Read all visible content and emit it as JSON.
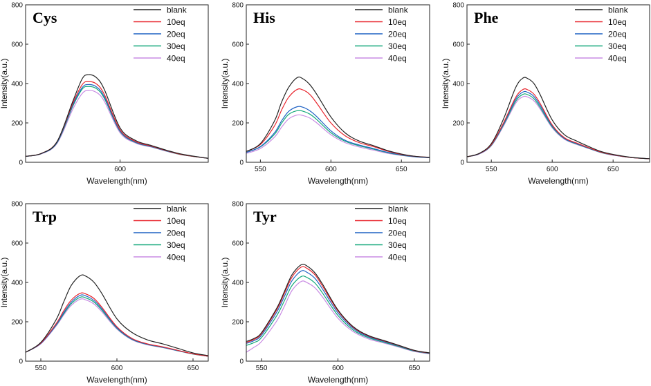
{
  "figure": {
    "xlabel": "Wavelength(nm)",
    "ylabel": "Intensity(a.u.)"
  },
  "series_colors": {
    "blank": "#222222",
    "10eq": "#e8242c",
    "20eq": "#1f62c4",
    "30eq": "#13a87a",
    "40eq": "#c98be3"
  },
  "chart_data": [
    {
      "type": "line",
      "title": "Cys",
      "xlabel": "Wavelength(nm)",
      "ylabel": "Intensity(a.u.)",
      "xlim": [
        540,
        656
      ],
      "ylim": [
        0,
        800
      ],
      "xticks": [
        600
      ],
      "yticks": [
        0,
        200,
        400,
        600,
        800
      ],
      "legend_position": "top-right",
      "series": [
        {
          "name": "blank",
          "x": [
            540,
            550,
            560,
            570,
            576,
            580,
            585,
            590,
            600,
            610,
            620,
            630,
            640,
            656
          ],
          "values": [
            30,
            45,
            105,
            310,
            425,
            445,
            430,
            370,
            175,
            110,
            85,
            60,
            40,
            20
          ]
        },
        {
          "name": "10eq",
          "x": [
            540,
            550,
            560,
            570,
            576,
            580,
            585,
            590,
            600,
            610,
            620,
            630,
            640,
            656
          ],
          "values": [
            30,
            45,
            105,
            300,
            395,
            410,
            398,
            345,
            165,
            105,
            82,
            58,
            38,
            20
          ]
        },
        {
          "name": "20eq",
          "x": [
            540,
            550,
            560,
            570,
            576,
            580,
            585,
            590,
            600,
            610,
            620,
            630,
            640,
            656
          ],
          "values": [
            30,
            44,
            102,
            292,
            380,
            395,
            383,
            333,
            160,
            102,
            80,
            57,
            38,
            20
          ]
        },
        {
          "name": "30eq",
          "x": [
            540,
            550,
            560,
            570,
            576,
            580,
            585,
            590,
            600,
            610,
            620,
            630,
            640,
            656
          ],
          "values": [
            30,
            44,
            100,
            285,
            372,
            385,
            374,
            325,
            157,
            100,
            79,
            56,
            37,
            20
          ]
        },
        {
          "name": "40eq",
          "x": [
            540,
            550,
            560,
            570,
            576,
            580,
            585,
            590,
            600,
            610,
            620,
            630,
            640,
            656
          ],
          "values": [
            30,
            43,
            96,
            270,
            350,
            365,
            355,
            310,
            150,
            97,
            77,
            55,
            37,
            20
          ]
        }
      ]
    },
    {
      "type": "line",
      "title": "His",
      "xlabel": "Wavelength(nm)",
      "ylabel": "Intensity(a.u.)",
      "xlim": [
        540,
        670
      ],
      "ylim": [
        0,
        800
      ],
      "xticks": [
        550,
        600,
        650
      ],
      "yticks": [
        0,
        200,
        400,
        600,
        800
      ],
      "legend_position": "top-right",
      "series": [
        {
          "name": "blank",
          "x": [
            540,
            550,
            560,
            565,
            570,
            576,
            580,
            585,
            590,
            600,
            610,
            620,
            630,
            640,
            650,
            660,
            670
          ],
          "values": [
            55,
            95,
            210,
            305,
            380,
            430,
            425,
            395,
            345,
            230,
            150,
            108,
            85,
            60,
            42,
            30,
            25
          ]
        },
        {
          "name": "10eq",
          "x": [
            540,
            550,
            560,
            565,
            570,
            576,
            580,
            585,
            590,
            600,
            610,
            620,
            630,
            640,
            650,
            660,
            670
          ],
          "values": [
            55,
            90,
            185,
            265,
            330,
            370,
            368,
            345,
            300,
            200,
            135,
            100,
            80,
            57,
            40,
            30,
            25
          ]
        },
        {
          "name": "20eq",
          "x": [
            540,
            550,
            560,
            565,
            570,
            576,
            580,
            585,
            590,
            600,
            610,
            620,
            630,
            640,
            650,
            660,
            670
          ],
          "values": [
            50,
            80,
            150,
            210,
            258,
            282,
            280,
            262,
            232,
            160,
            112,
            88,
            70,
            51,
            37,
            28,
            24
          ]
        },
        {
          "name": "30eq",
          "x": [
            540,
            550,
            560,
            565,
            570,
            576,
            580,
            585,
            590,
            600,
            610,
            620,
            630,
            640,
            650,
            660,
            670
          ],
          "values": [
            50,
            78,
            142,
            198,
            243,
            262,
            260,
            245,
            217,
            150,
            107,
            84,
            67,
            49,
            36,
            28,
            24
          ]
        },
        {
          "name": "40eq",
          "x": [
            540,
            550,
            560,
            565,
            570,
            576,
            580,
            585,
            590,
            600,
            610,
            620,
            630,
            640,
            650,
            660,
            670
          ],
          "values": [
            45,
            70,
            128,
            178,
            220,
            240,
            238,
            225,
            200,
            140,
            100,
            78,
            62,
            46,
            35,
            27,
            23
          ]
        }
      ]
    },
    {
      "type": "line",
      "title": "Phe",
      "xlabel": "Wavelength(nm)",
      "ylabel": "Intensity(a.u.)",
      "xlim": [
        530,
        680
      ],
      "ylim": [
        0,
        800
      ],
      "xticks": [
        550,
        600,
        650
      ],
      "yticks": [
        0,
        200,
        400,
        600,
        800
      ],
      "legend_position": "top-right",
      "series": [
        {
          "name": "blank",
          "x": [
            530,
            540,
            550,
            560,
            570,
            576,
            580,
            585,
            590,
            600,
            610,
            620,
            630,
            640,
            650,
            665,
            680
          ],
          "values": [
            28,
            45,
            95,
            220,
            380,
            428,
            425,
            400,
            345,
            215,
            140,
            108,
            80,
            55,
            40,
            25,
            18
          ]
        },
        {
          "name": "10eq",
          "x": [
            530,
            540,
            550,
            560,
            570,
            576,
            580,
            585,
            590,
            600,
            610,
            620,
            630,
            640,
            650,
            665,
            680
          ],
          "values": [
            28,
            44,
            90,
            200,
            330,
            370,
            368,
            346,
            300,
            190,
            125,
            98,
            74,
            52,
            38,
            24,
            18
          ]
        },
        {
          "name": "20eq",
          "x": [
            530,
            540,
            550,
            560,
            570,
            576,
            580,
            585,
            590,
            600,
            610,
            620,
            630,
            640,
            650,
            665,
            680
          ],
          "values": [
            28,
            43,
            88,
            195,
            320,
            357,
            355,
            334,
            290,
            185,
            122,
            95,
            72,
            51,
            37,
            24,
            18
          ]
        },
        {
          "name": "30eq",
          "x": [
            530,
            540,
            550,
            560,
            570,
            576,
            580,
            585,
            590,
            600,
            610,
            620,
            630,
            640,
            650,
            665,
            680
          ],
          "values": [
            28,
            43,
            86,
            190,
            310,
            345,
            343,
            323,
            280,
            180,
            120,
            93,
            71,
            50,
            37,
            24,
            18
          ]
        },
        {
          "name": "40eq",
          "x": [
            530,
            540,
            550,
            560,
            570,
            576,
            580,
            585,
            590,
            600,
            610,
            620,
            630,
            640,
            650,
            665,
            680
          ],
          "values": [
            28,
            42,
            84,
            184,
            300,
            333,
            331,
            312,
            272,
            175,
            117,
            91,
            70,
            49,
            36,
            24,
            18
          ]
        }
      ]
    },
    {
      "type": "line",
      "title": "Trp",
      "xlabel": "Wavelength(nm)",
      "ylabel": "Intensity(a.u.)",
      "xlim": [
        540,
        660
      ],
      "ylim": [
        0,
        800
      ],
      "xticks": [
        550,
        600,
        650
      ],
      "yticks": [
        0,
        200,
        400,
        600,
        800
      ],
      "legend_position": "top-right",
      "series": [
        {
          "name": "blank",
          "x": [
            540,
            550,
            560,
            565,
            570,
            576,
            580,
            585,
            590,
            600,
            610,
            620,
            630,
            640,
            650,
            660
          ],
          "values": [
            45,
            95,
            210,
            300,
            385,
            435,
            430,
            400,
            345,
            215,
            145,
            108,
            88,
            65,
            42,
            28
          ]
        },
        {
          "name": "10eq",
          "x": [
            540,
            550,
            560,
            565,
            570,
            576,
            580,
            585,
            590,
            600,
            610,
            620,
            630,
            640,
            650,
            660
          ],
          "values": [
            45,
            92,
            190,
            255,
            310,
            345,
            340,
            318,
            275,
            175,
            115,
            88,
            73,
            55,
            37,
            25
          ]
        },
        {
          "name": "20eq",
          "x": [
            540,
            550,
            560,
            565,
            570,
            576,
            580,
            585,
            590,
            600,
            610,
            620,
            630,
            640,
            650,
            660
          ],
          "values": [
            45,
            90,
            185,
            246,
            300,
            335,
            330,
            308,
            267,
            170,
            112,
            86,
            71,
            54,
            37,
            25
          ]
        },
        {
          "name": "30eq",
          "x": [
            540,
            550,
            560,
            565,
            570,
            576,
            580,
            585,
            590,
            600,
            610,
            620,
            630,
            640,
            650,
            660
          ],
          "values": [
            45,
            90,
            182,
            240,
            292,
            325,
            320,
            300,
            260,
            167,
            110,
            85,
            70,
            53,
            36,
            25
          ]
        },
        {
          "name": "40eq",
          "x": [
            540,
            550,
            560,
            565,
            570,
            576,
            580,
            585,
            590,
            600,
            610,
            620,
            630,
            640,
            650,
            660
          ],
          "values": [
            45,
            88,
            178,
            234,
            283,
            315,
            310,
            290,
            252,
            163,
            108,
            83,
            69,
            52,
            36,
            25
          ]
        }
      ]
    },
    {
      "type": "line",
      "title": "Tyr",
      "xlabel": "Wavelength(nm)",
      "ylabel": "Intensity(a.u.)",
      "xlim": [
        540,
        660
      ],
      "ylim": [
        0,
        800
      ],
      "xticks": [
        550,
        600,
        650
      ],
      "yticks": [
        0,
        200,
        400,
        600,
        800
      ],
      "legend_position": "top-right",
      "series": [
        {
          "name": "blank",
          "x": [
            540,
            545,
            550,
            560,
            565,
            570,
            576,
            580,
            585,
            590,
            600,
            610,
            620,
            630,
            640,
            650,
            660
          ],
          "values": [
            100,
            115,
            145,
            270,
            355,
            440,
            490,
            482,
            448,
            390,
            260,
            175,
            130,
            105,
            80,
            55,
            42
          ]
        },
        {
          "name": "10eq",
          "x": [
            540,
            545,
            550,
            560,
            565,
            570,
            576,
            580,
            585,
            590,
            600,
            610,
            620,
            630,
            640,
            650,
            660
          ],
          "values": [
            95,
            110,
            140,
            262,
            345,
            428,
            478,
            470,
            438,
            380,
            255,
            172,
            128,
            103,
            79,
            54,
            41
          ]
        },
        {
          "name": "20eq",
          "x": [
            540,
            545,
            550,
            560,
            565,
            570,
            576,
            580,
            585,
            590,
            600,
            610,
            620,
            630,
            640,
            650,
            660
          ],
          "values": [
            90,
            104,
            132,
            250,
            330,
            410,
            458,
            450,
            420,
            365,
            245,
            166,
            124,
            100,
            77,
            53,
            40
          ]
        },
        {
          "name": "30eq",
          "x": [
            540,
            545,
            550,
            560,
            565,
            570,
            576,
            580,
            585,
            590,
            600,
            610,
            620,
            630,
            640,
            650,
            660
          ],
          "values": [
            80,
            94,
            120,
            232,
            308,
            385,
            430,
            424,
            396,
            345,
            232,
            158,
            119,
            96,
            74,
            51,
            39
          ]
        },
        {
          "name": "40eq",
          "x": [
            540,
            545,
            550,
            560,
            565,
            570,
            576,
            580,
            585,
            590,
            600,
            610,
            620,
            630,
            640,
            650,
            660
          ],
          "values": [
            45,
            70,
            100,
            205,
            280,
            360,
            405,
            398,
            372,
            325,
            218,
            150,
            113,
            92,
            71,
            49,
            37
          ]
        }
      ]
    }
  ]
}
